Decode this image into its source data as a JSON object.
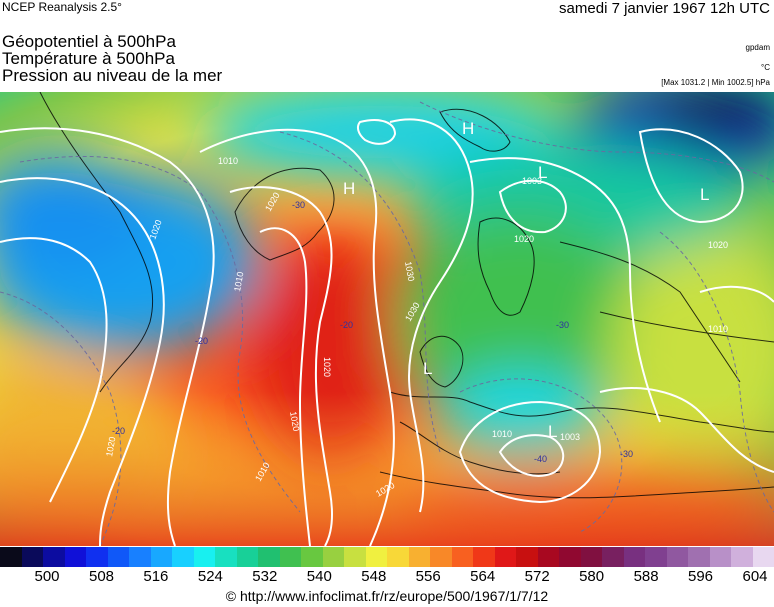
{
  "header": {
    "source": "NCEP Reanalysis 2.5°",
    "date": "samedi 7 janvier 1967 12h UTC"
  },
  "titles": [
    "Géopotentiel à 500hPa",
    "Température à 500hPa",
    "Pression au niveau de la mer"
  ],
  "units": {
    "geopotential": "gpdam",
    "temperature": "°C",
    "pressure_range": "[Max 1031.2 | Min 1002.5] hPa"
  },
  "map": {
    "high_symbols": [
      "H",
      "H"
    ],
    "low_symbols": [
      "L",
      "L",
      "L",
      "L"
    ],
    "isobar_labels": [
      "1010",
      "1020",
      "1020",
      "1010",
      "1020",
      "1030",
      "1020",
      "1010",
      "1003",
      "1020",
      "1020",
      "1030",
      "1010",
      "1003",
      "1020",
      "1020",
      "1010"
    ],
    "temperature_labels": [
      "-20",
      "-30",
      "-20",
      "-30",
      "-40",
      "-30",
      "-20"
    ]
  },
  "scale": {
    "ticks": [
      "500",
      "508",
      "516",
      "524",
      "532",
      "540",
      "548",
      "556",
      "564",
      "572",
      "580",
      "588",
      "596",
      "604"
    ],
    "colors": [
      "#0a0a1a",
      "#0a0a5a",
      "#0c0ca0",
      "#1010d8",
      "#1030f0",
      "#1058f8",
      "#1880ff",
      "#18a8ff",
      "#18d0ff",
      "#18f0f0",
      "#18e0c0",
      "#18d098",
      "#20c070",
      "#40c050",
      "#68c840",
      "#98d040",
      "#c8e040",
      "#f0f040",
      "#f8d838",
      "#f8b030",
      "#f88828",
      "#f86020",
      "#f03818",
      "#e01818",
      "#c81010",
      "#a80820",
      "#900830",
      "#801040",
      "#782060",
      "#783080",
      "#804090",
      "#9058a0",
      "#a070b0",
      "#b890c8",
      "#d0b0dc",
      "#e8d8f0"
    ]
  },
  "credit": "© http://www.infoclimat.fr/rz/europe/500/1967/1/7/12"
}
